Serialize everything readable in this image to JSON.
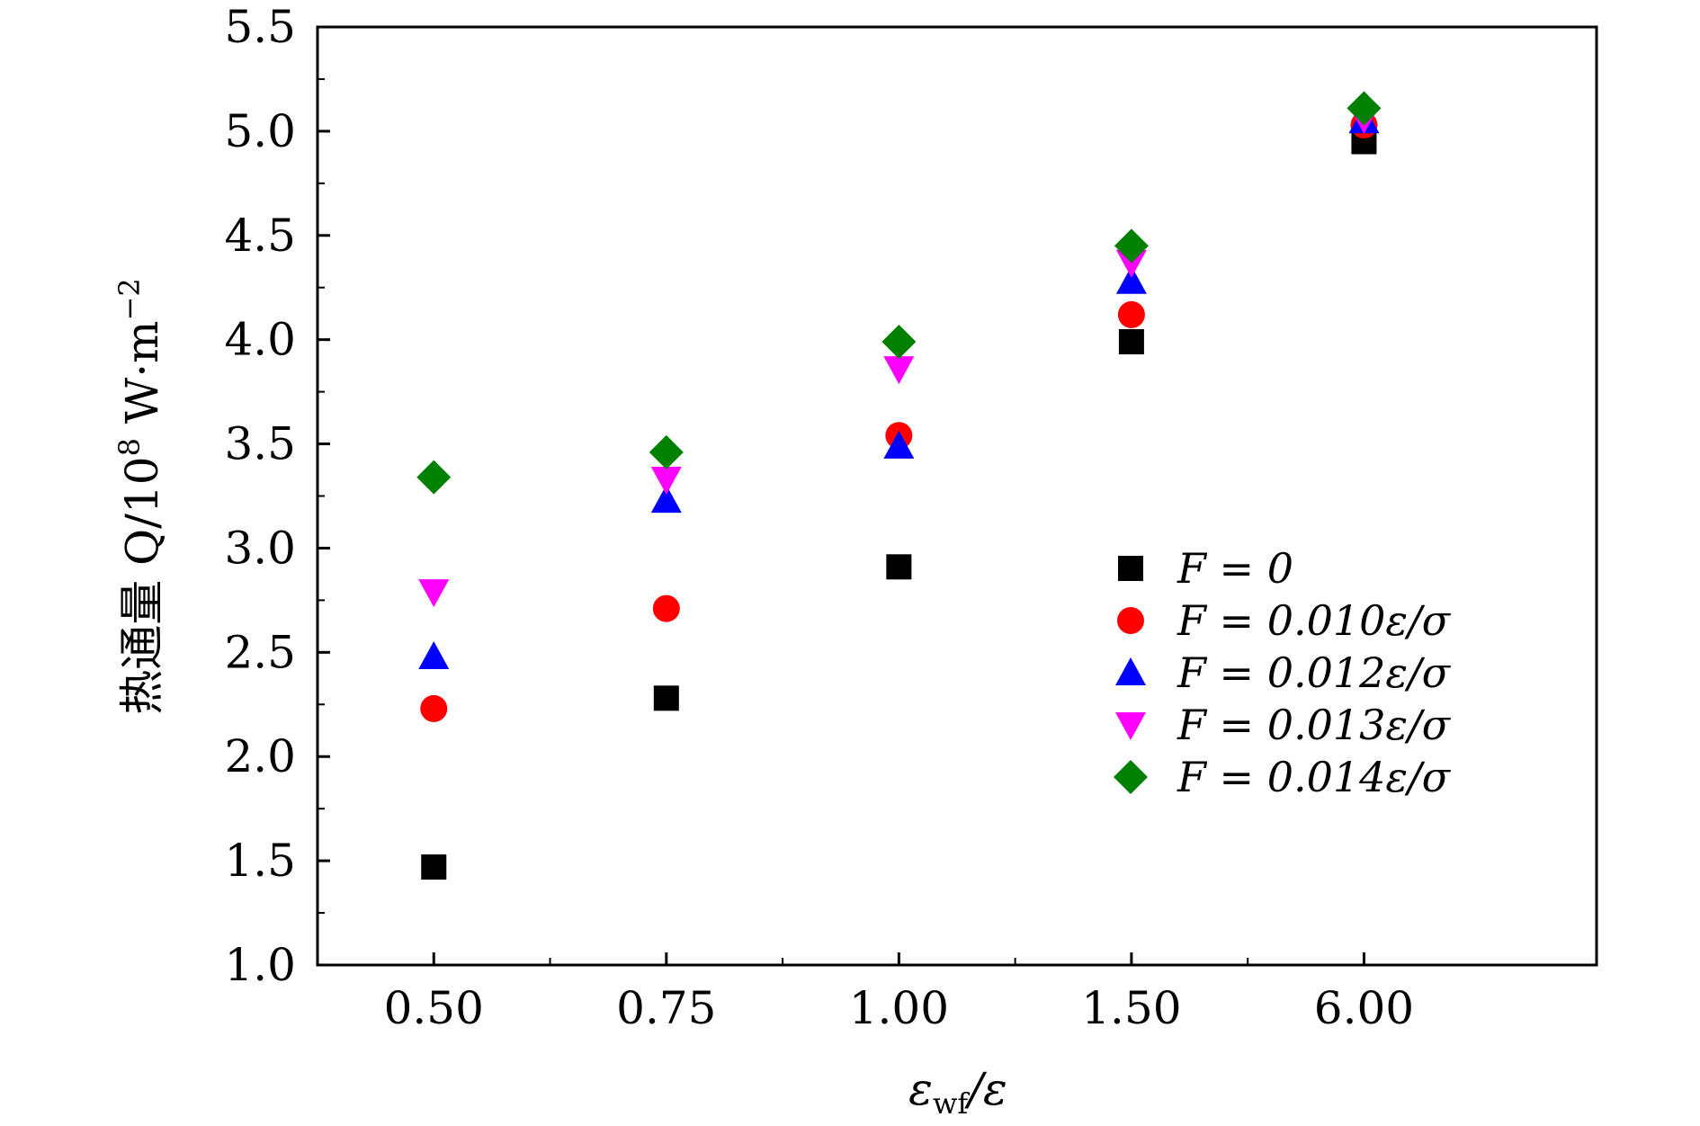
{
  "chart_data": {
    "type": "scatter",
    "xlabel": "ε_wf/ε",
    "xlabel_main": "ε",
    "xlabel_sub": "wf",
    "xlabel_tail": "/ε",
    "ylabel": "热通量 Q/10⁸ W·m⁻²",
    "ylabel_main": "热通量 Q/10",
    "ylabel_exp1": "8",
    "ylabel_mid": " W·m",
    "ylabel_exp2": "−2",
    "categories": [
      "0.50",
      "0.75",
      "1.00",
      "1.50",
      "6.00"
    ],
    "ylim": [
      1.0,
      5.5
    ],
    "yticks": [
      "1.0",
      "1.5",
      "2.0",
      "2.5",
      "3.0",
      "3.5",
      "4.0",
      "4.5",
      "5.0",
      "5.5"
    ],
    "legend_position": "center-right",
    "grid": false,
    "series": [
      {
        "name": "F = 0",
        "marker": "square",
        "color": "#000000",
        "values": [
          1.47,
          2.28,
          2.91,
          3.99,
          4.95
        ]
      },
      {
        "name": "F = 0.010ε/σ",
        "marker": "circle",
        "color": "#ff0000",
        "values": [
          2.23,
          2.71,
          3.54,
          4.12,
          5.03
        ]
      },
      {
        "name": "F = 0.012ε/σ",
        "marker": "triangle-up",
        "color": "#0000ff",
        "values": [
          2.48,
          3.23,
          3.49,
          4.28,
          5.05
        ]
      },
      {
        "name": "F = 0.013ε/σ",
        "marker": "triangle-down",
        "color": "#ff00ff",
        "values": [
          2.79,
          3.33,
          3.86,
          4.37,
          5.06
        ]
      },
      {
        "name": "F = 0.014ε/σ",
        "marker": "diamond",
        "color": "#008000",
        "values": [
          3.34,
          3.46,
          3.99,
          4.45,
          5.11
        ]
      }
    ]
  }
}
